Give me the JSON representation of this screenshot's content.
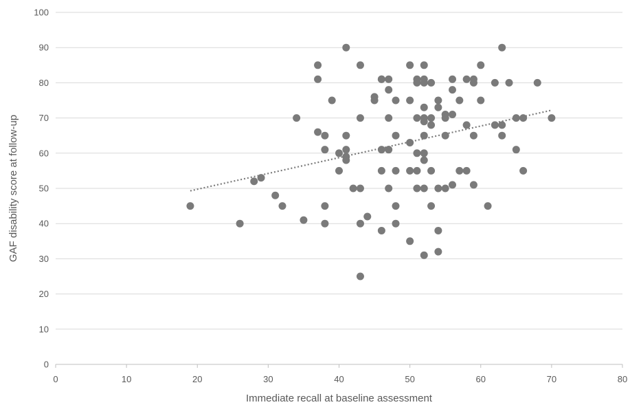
{
  "chart_data": {
    "type": "scatter",
    "title": "",
    "xlabel": "Immediate recall at baseline assessment",
    "ylabel": "GAF disability score at follow-up",
    "xlim": [
      0,
      80
    ],
    "ylim": [
      0,
      100
    ],
    "x_ticks": [
      "0",
      "10",
      "20",
      "30",
      "40",
      "50",
      "60",
      "70",
      "80"
    ],
    "y_ticks": [
      "0",
      "10",
      "20",
      "30",
      "40",
      "50",
      "60",
      "70",
      "80",
      "90",
      "100"
    ],
    "grid": "horizontal",
    "legend": "none",
    "colors": {
      "point": "#7a7a7a",
      "trend": "#7a7a7a",
      "grid": "#d9d9d9",
      "axis": "#bfbfbf",
      "text": "#595959"
    },
    "trendline": {
      "style": "dotted",
      "x": [
        19,
        70
      ],
      "y": [
        49.3,
        72.2
      ]
    },
    "series": [
      {
        "points": [
          [
            19,
            45
          ],
          [
            26,
            40
          ],
          [
            28,
            52
          ],
          [
            29,
            53
          ],
          [
            31,
            48
          ],
          [
            32,
            45
          ],
          [
            34,
            70
          ],
          [
            35,
            41
          ],
          [
            37,
            85
          ],
          [
            37,
            81
          ],
          [
            37,
            66
          ],
          [
            38,
            65
          ],
          [
            38,
            61
          ],
          [
            38,
            45
          ],
          [
            38,
            40
          ],
          [
            39,
            75
          ],
          [
            40,
            60
          ],
          [
            40,
            55
          ],
          [
            41,
            90
          ],
          [
            41,
            65
          ],
          [
            41,
            61
          ],
          [
            41,
            59
          ],
          [
            41,
            58
          ],
          [
            42,
            50
          ],
          [
            43,
            85
          ],
          [
            43,
            70
          ],
          [
            43,
            50
          ],
          [
            43,
            40
          ],
          [
            43,
            25
          ],
          [
            44,
            42
          ],
          [
            45,
            76
          ],
          [
            45,
            75
          ],
          [
            46,
            81
          ],
          [
            46,
            81
          ],
          [
            46,
            61
          ],
          [
            46,
            55
          ],
          [
            46,
            38
          ],
          [
            47,
            81
          ],
          [
            47,
            78
          ],
          [
            47,
            70
          ],
          [
            47,
            61
          ],
          [
            47,
            50
          ],
          [
            48,
            75
          ],
          [
            48,
            65
          ],
          [
            48,
            55
          ],
          [
            48,
            45
          ],
          [
            48,
            40
          ],
          [
            50,
            85
          ],
          [
            50,
            75
          ],
          [
            50,
            63
          ],
          [
            50,
            55
          ],
          [
            50,
            35
          ],
          [
            51,
            81
          ],
          [
            51,
            80
          ],
          [
            51,
            70
          ],
          [
            51,
            60
          ],
          [
            51,
            55
          ],
          [
            51,
            50
          ],
          [
            52,
            85
          ],
          [
            52,
            81
          ],
          [
            52,
            80
          ],
          [
            52,
            73
          ],
          [
            52,
            70
          ],
          [
            52,
            69
          ],
          [
            52,
            65
          ],
          [
            52,
            60
          ],
          [
            52,
            58
          ],
          [
            52,
            50
          ],
          [
            52,
            31
          ],
          [
            53,
            80
          ],
          [
            53,
            70
          ],
          [
            53,
            68
          ],
          [
            53,
            55
          ],
          [
            53,
            45
          ],
          [
            54,
            75
          ],
          [
            54,
            73
          ],
          [
            54,
            50
          ],
          [
            54,
            38
          ],
          [
            54,
            32
          ],
          [
            55,
            71
          ],
          [
            55,
            70
          ],
          [
            55,
            65
          ],
          [
            55,
            50
          ],
          [
            56,
            81
          ],
          [
            56,
            78
          ],
          [
            56,
            71
          ],
          [
            56,
            51
          ],
          [
            57,
            75
          ],
          [
            57,
            55
          ],
          [
            58,
            81
          ],
          [
            58,
            68
          ],
          [
            58,
            55
          ],
          [
            59,
            81
          ],
          [
            59,
            80
          ],
          [
            59,
            65
          ],
          [
            59,
            51
          ],
          [
            60,
            85
          ],
          [
            60,
            75
          ],
          [
            61,
            45
          ],
          [
            62,
            80
          ],
          [
            62,
            68
          ],
          [
            63,
            90
          ],
          [
            63,
            68
          ],
          [
            63,
            65
          ],
          [
            64,
            80
          ],
          [
            65,
            70
          ],
          [
            65,
            61
          ],
          [
            66,
            70
          ],
          [
            66,
            55
          ],
          [
            68,
            80
          ],
          [
            70,
            70
          ]
        ]
      }
    ]
  }
}
